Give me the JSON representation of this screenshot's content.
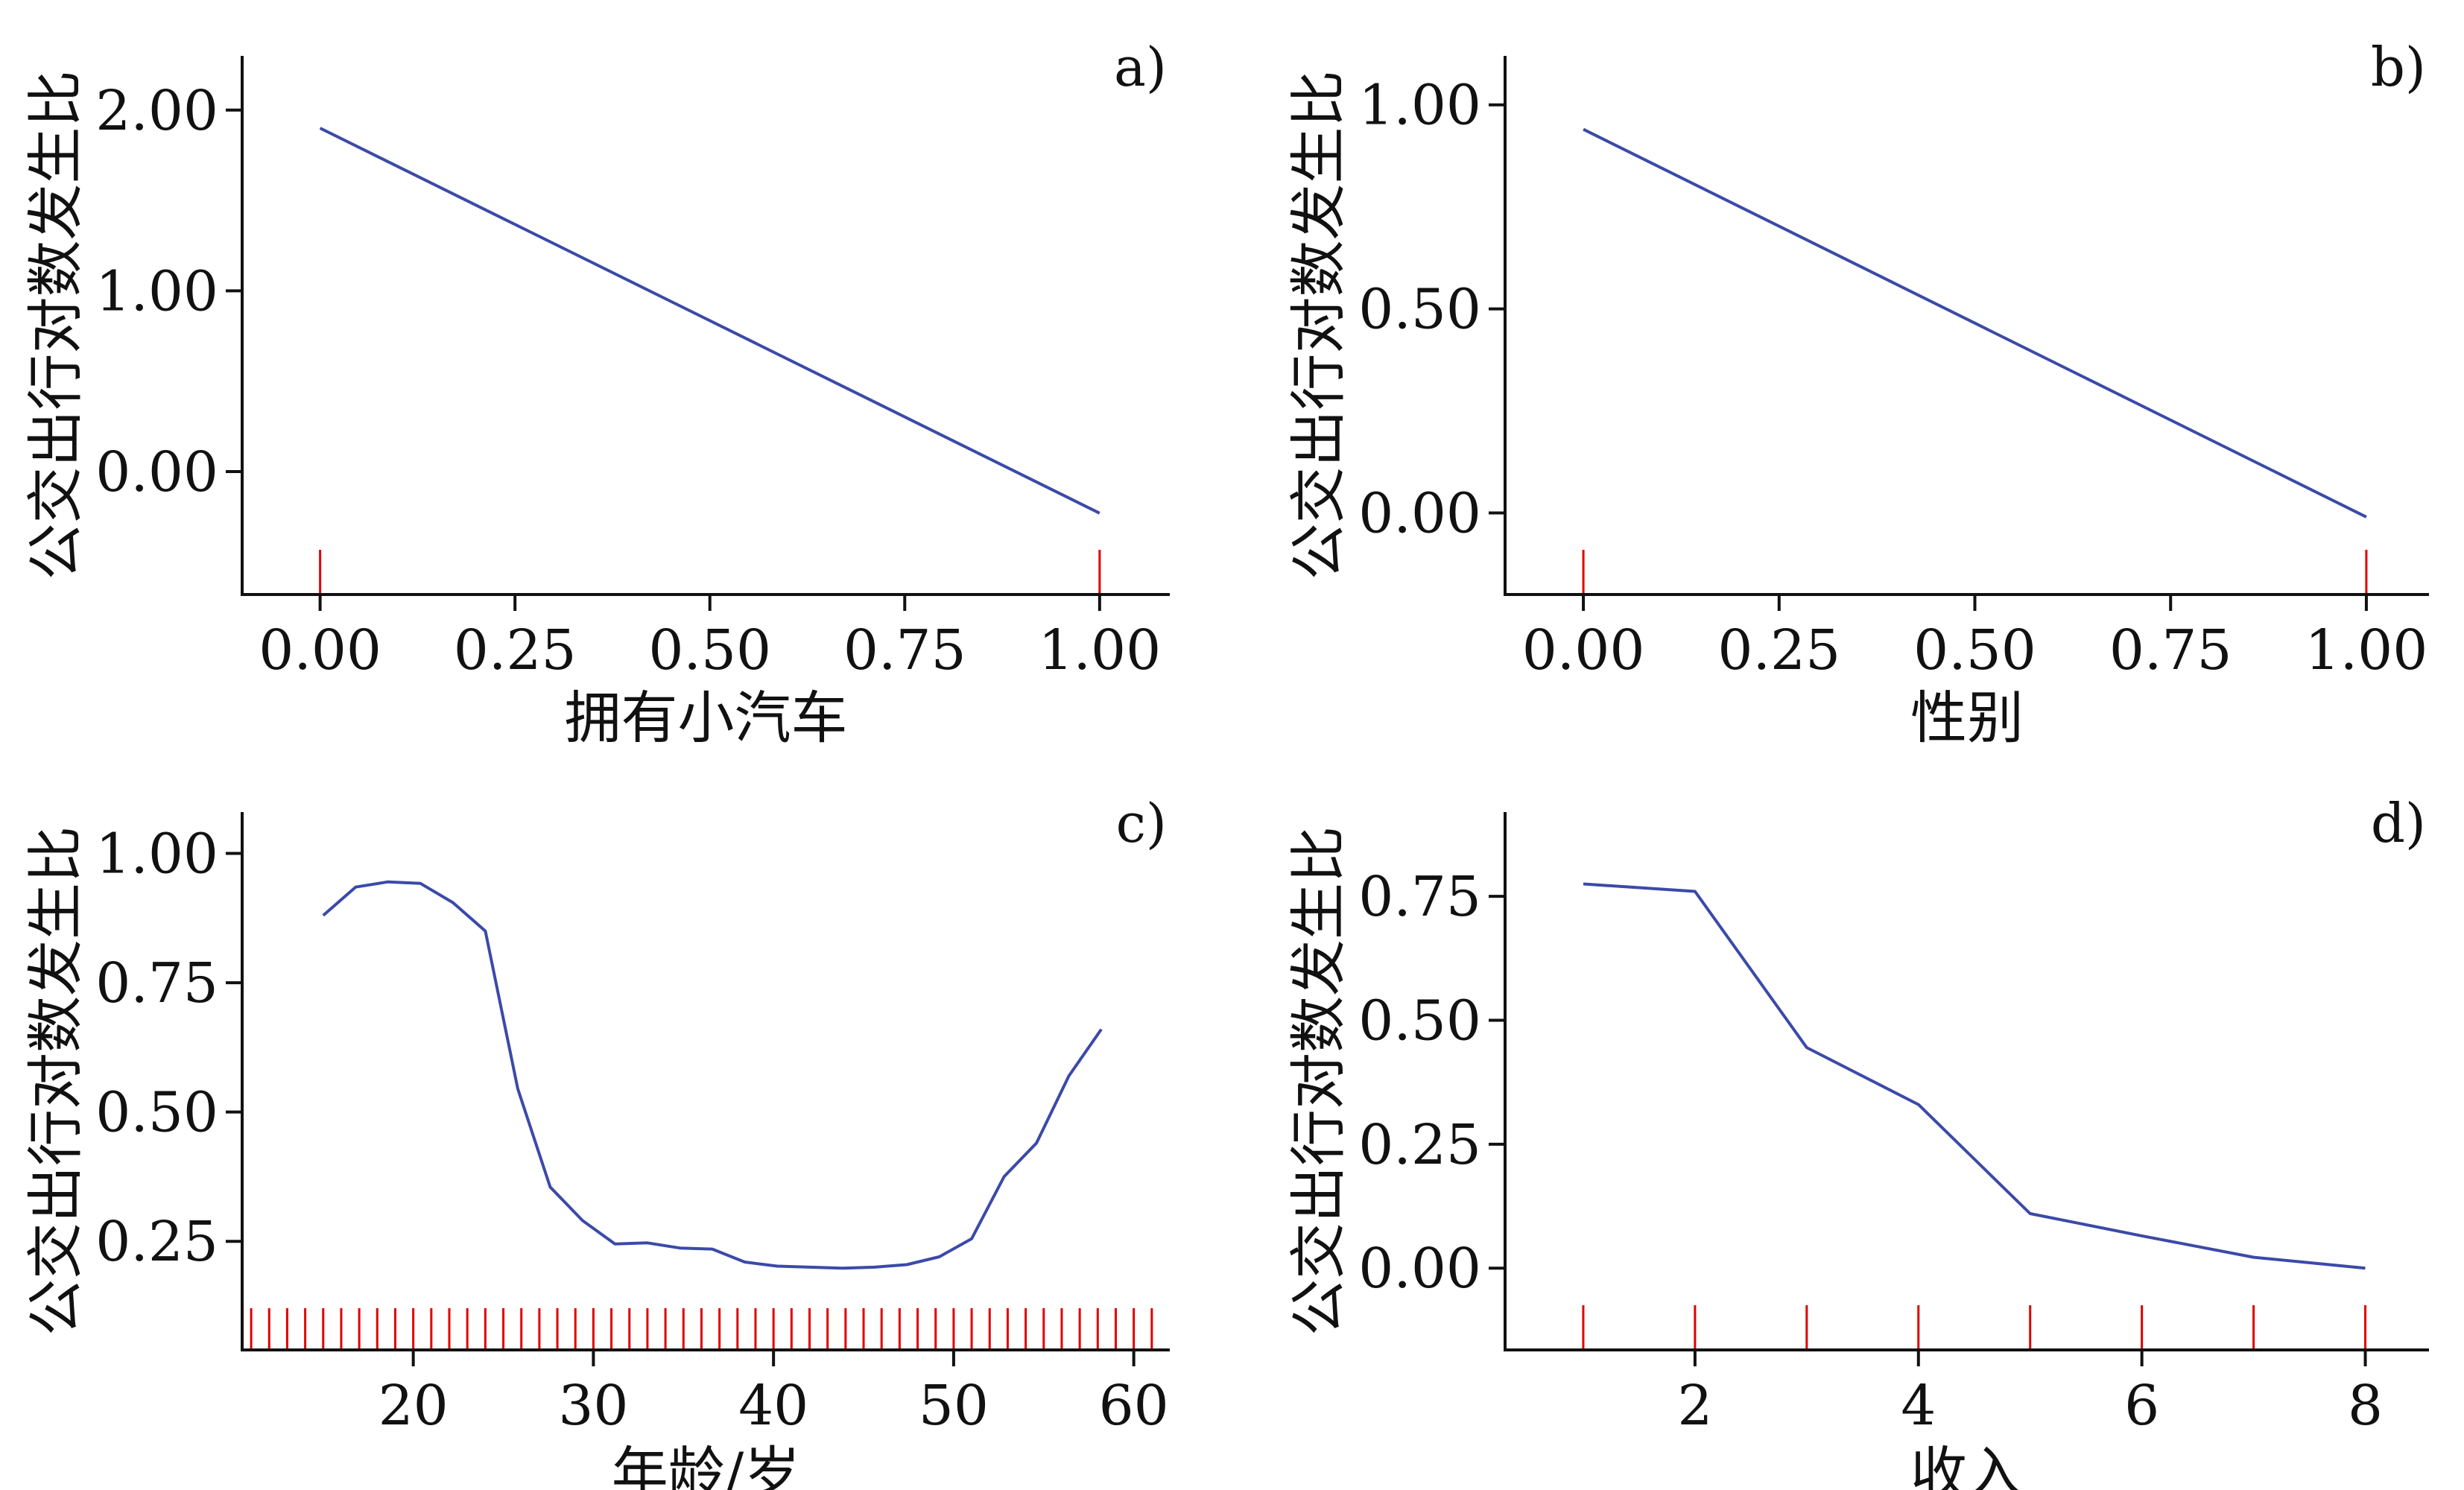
{
  "chart_data": [
    {
      "type": "line",
      "panel_label": "a)",
      "xlabel": "拥有小汽车",
      "ylabel": "公交出行对数发生比",
      "xlim": [
        -0.1,
        1.09
      ],
      "ylim": [
        -0.68,
        2.3
      ],
      "xticks": [
        0,
        0.25,
        0.5,
        0.75,
        1.0
      ],
      "xtick_labels": [
        "0.00",
        "0.25",
        "0.50",
        "0.75",
        "1.00"
      ],
      "yticks": [
        0,
        1.0,
        2.0
      ],
      "ytick_labels": [
        "0.00",
        "1.00",
        "2.00"
      ],
      "series": [
        {
          "x": [
            0,
            1
          ],
          "y": [
            1.9,
            -0.23
          ]
        }
      ],
      "rug": [
        0,
        1
      ],
      "color": "#3b4aa8",
      "rug_color": "#e00000"
    },
    {
      "type": "line",
      "panel_label": "b)",
      "xlabel": "性别",
      "ylabel": "公交出行对数发生比",
      "xlim": [
        -0.1,
        1.08
      ],
      "ylim": [
        -0.2,
        1.12
      ],
      "xticks": [
        0,
        0.25,
        0.5,
        0.75,
        1.0
      ],
      "xtick_labels": [
        "0.00",
        "0.25",
        "0.50",
        "0.75",
        "1.00"
      ],
      "yticks": [
        0,
        0.5,
        1.0
      ],
      "ytick_labels": [
        "0.00",
        "0.50",
        "1.00"
      ],
      "series": [
        {
          "x": [
            0,
            1
          ],
          "y": [
            0.94,
            -0.01
          ]
        }
      ],
      "rug": [
        0,
        1
      ],
      "color": "#3b4aa8",
      "rug_color": "#e00000"
    },
    {
      "type": "line",
      "panel_label": "c)",
      "xlabel": "年龄/岁",
      "ylabel": "公交出行对数发生比",
      "xlim": [
        10.5,
        62
      ],
      "ylim": [
        0.04,
        1.08
      ],
      "xticks": [
        20,
        30,
        40,
        50,
        60
      ],
      "xtick_labels": [
        "20",
        "30",
        "40",
        "50",
        "60"
      ],
      "yticks": [
        0.25,
        0.5,
        0.75,
        1.0
      ],
      "ytick_labels": [
        "0.25",
        "0.50",
        "0.75",
        "1.00"
      ],
      "series": [
        {
          "x": [
            15,
            16.8,
            18.6,
            20.4,
            22.2,
            24,
            25.8,
            27.6,
            29.4,
            31.2,
            33,
            34.8,
            36.6,
            38.4,
            40.2,
            42,
            43.8,
            45.6,
            47.4,
            49.2,
            51,
            52.8,
            54.6,
            56.4,
            58.2
          ],
          "y": [
            0.88,
            0.935,
            0.945,
            0.942,
            0.905,
            0.85,
            0.545,
            0.355,
            0.29,
            0.245,
            0.247,
            0.237,
            0.235,
            0.21,
            0.202,
            0.2,
            0.198,
            0.2,
            0.205,
            0.22,
            0.255,
            0.375,
            0.44,
            0.57,
            0.66
          ]
        }
      ],
      "rug": [
        11,
        12,
        13,
        14,
        15,
        16,
        17,
        18,
        19,
        20,
        21,
        22,
        23,
        24,
        25,
        26,
        27,
        28,
        29,
        30,
        31,
        32,
        33,
        34,
        35,
        36,
        37,
        38,
        39,
        40,
        41,
        42,
        43,
        44,
        45,
        46,
        47,
        48,
        49,
        50,
        51,
        52,
        53,
        54,
        55,
        56,
        57,
        58,
        59,
        60,
        61
      ],
      "color": "#3b4aa8",
      "rug_color": "#e00000"
    },
    {
      "type": "line",
      "panel_label": "d)",
      "xlabel": "收入",
      "ylabel": "公交出行对数发生比",
      "xlim": [
        0.3,
        8.57
      ],
      "ylim": [
        -0.165,
        0.92
      ],
      "xticks": [
        2,
        4,
        6,
        8
      ],
      "xtick_labels": [
        "2",
        "4",
        "6",
        "8"
      ],
      "yticks": [
        0,
        0.25,
        0.5,
        0.75
      ],
      "ytick_labels": [
        "0.00",
        "0.25",
        "0.50",
        "0.75"
      ],
      "series": [
        {
          "x": [
            1,
            2,
            3,
            4,
            5,
            6,
            7,
            8
          ],
          "y": [
            0.775,
            0.76,
            0.445,
            0.33,
            0.11,
            0.065,
            0.022,
            0.0
          ]
        }
      ],
      "rug": [
        1,
        2,
        3,
        4,
        5,
        6,
        7,
        8
      ],
      "color": "#3b4aa8",
      "rug_color": "#e00000"
    }
  ]
}
